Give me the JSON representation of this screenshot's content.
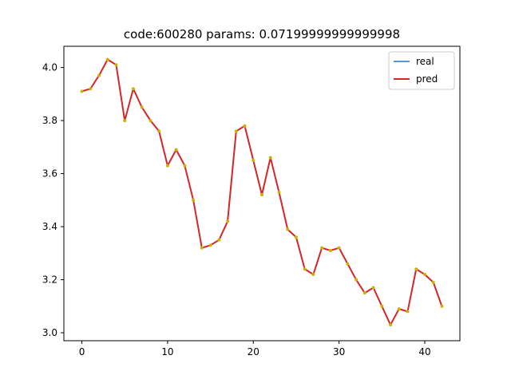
{
  "chart_data": {
    "type": "line",
    "title": "code:600280 params: 0.07199999999999998",
    "xlabel": "",
    "ylabel": "",
    "xlim": [
      -2.1,
      44.1
    ],
    "ylim": [
      2.97,
      4.08
    ],
    "x_ticks": [
      0,
      10,
      20,
      30,
      40
    ],
    "y_ticks": [
      3.0,
      3.2,
      3.4,
      3.6,
      3.8,
      4.0
    ],
    "x_tick_labels": [
      "0",
      "10",
      "20",
      "30",
      "40"
    ],
    "y_tick_labels": [
      "3.0",
      "3.2",
      "3.4",
      "3.6",
      "3.8",
      "4.0"
    ],
    "grid": false,
    "legend_position": "top-right",
    "x": [
      0,
      1,
      2,
      3,
      4,
      5,
      6,
      7,
      8,
      9,
      10,
      11,
      12,
      13,
      14,
      15,
      16,
      17,
      18,
      19,
      20,
      21,
      22,
      23,
      24,
      25,
      26,
      27,
      28,
      29,
      30,
      31,
      32,
      33,
      34,
      35,
      36,
      37,
      38,
      39,
      40,
      41,
      42
    ],
    "series": [
      {
        "name": "real",
        "color": "#1f77b4",
        "values": [
          3.91,
          3.92,
          3.97,
          4.03,
          4.01,
          3.8,
          3.92,
          3.85,
          3.8,
          3.76,
          3.63,
          3.69,
          3.63,
          3.5,
          3.32,
          3.33,
          3.35,
          3.42,
          3.76,
          3.78,
          3.65,
          3.52,
          3.66,
          3.53,
          3.39,
          3.36,
          3.24,
          3.22,
          3.32,
          3.31,
          3.32,
          3.26,
          3.2,
          3.15,
          3.17,
          3.1,
          3.03,
          3.09,
          3.08,
          3.24,
          3.22,
          3.19,
          3.1
        ]
      },
      {
        "name": "pred",
        "color": "#d62728",
        "values": [
          3.91,
          3.92,
          3.97,
          4.03,
          4.01,
          3.8,
          3.92,
          3.85,
          3.8,
          3.76,
          3.63,
          3.69,
          3.63,
          3.5,
          3.32,
          3.33,
          3.35,
          3.42,
          3.76,
          3.78,
          3.65,
          3.52,
          3.66,
          3.53,
          3.39,
          3.36,
          3.24,
          3.22,
          3.32,
          3.31,
          3.32,
          3.26,
          3.2,
          3.15,
          3.17,
          3.1,
          3.03,
          3.09,
          3.08,
          3.24,
          3.22,
          3.19,
          3.1
        ]
      }
    ],
    "marker_color": "#c8b400"
  }
}
